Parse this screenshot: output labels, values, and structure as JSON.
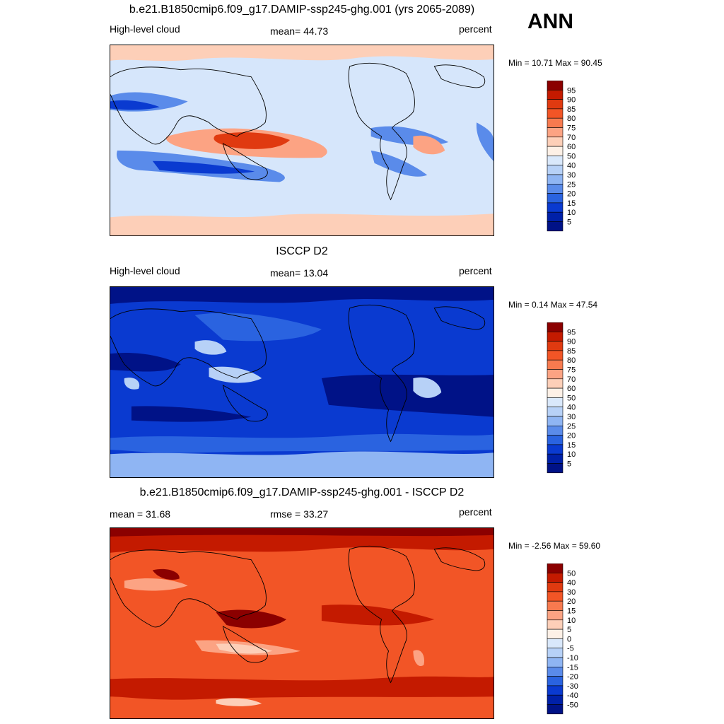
{
  "season": "ANN",
  "panels": [
    {
      "title": "b.e21.B1850cmip6.f09_g17.DAMIP-ssp245-ghg.001 (yrs 2065-2089)",
      "left": "High-level cloud",
      "center": "mean=  44.73",
      "right": "percent",
      "minmax": "Min =  10.71 Max =  90.45",
      "colorbar": {
        "labels": [
          "95",
          "90",
          "85",
          "80",
          "75",
          "70",
          "60",
          "50",
          "40",
          "30",
          "25",
          "20",
          "15",
          "10",
          "5"
        ],
        "colors": [
          "#8b0000",
          "#c41a00",
          "#e03a10",
          "#f25526",
          "#f77a4f",
          "#fca383",
          "#fdcfb8",
          "#fdf0e6",
          "#d9e8fb",
          "#b7d1f7",
          "#8fb5f3",
          "#5a8bea",
          "#2a63e0",
          "#0a3ad0",
          "#0020a8",
          "#001287"
        ]
      },
      "fields": {
        "background": "#d6e6fb",
        "regions": [
          {
            "kind": "warm-pool",
            "color": "#fca383"
          },
          {
            "kind": "warm-pool-core",
            "color": "#e03a10"
          },
          {
            "kind": "subtropics",
            "color": "#5a8bea"
          },
          {
            "kind": "subtropics-core",
            "color": "#0a3ad0"
          },
          {
            "kind": "polar",
            "color": "#fdcfb8"
          }
        ]
      }
    },
    {
      "title": "ISCCP D2",
      "left": "High-level cloud",
      "center": "mean=  13.04",
      "right": "percent",
      "minmax": "Min =   0.14 Max =  47.54",
      "colorbar": {
        "labels": [
          "95",
          "90",
          "85",
          "80",
          "75",
          "70",
          "60",
          "50",
          "40",
          "30",
          "25",
          "20",
          "15",
          "10",
          "5"
        ],
        "colors": [
          "#8b0000",
          "#c41a00",
          "#e03a10",
          "#f25526",
          "#f77a4f",
          "#fca383",
          "#fdcfb8",
          "#fdf0e6",
          "#d9e8fb",
          "#b7d1f7",
          "#8fb5f3",
          "#5a8bea",
          "#2a63e0",
          "#0a3ad0",
          "#0020a8",
          "#001287"
        ]
      },
      "fields": {
        "background": "#0a3ad0",
        "regions": [
          {
            "kind": "deep",
            "color": "#001287"
          },
          {
            "kind": "mid",
            "color": "#2a63e0"
          },
          {
            "kind": "convective",
            "color": "#b7d1f7"
          },
          {
            "kind": "polar",
            "color": "#8fb5f3"
          }
        ]
      }
    },
    {
      "title": "b.e21.B1850cmip6.f09_g17.DAMIP-ssp245-ghg.001 - ISCCP D2",
      "left": "mean =  31.68",
      "center": "rmse =  33.27",
      "right": "percent",
      "minmax": "Min =  -2.56 Max =  59.60",
      "colorbar": {
        "labels": [
          "50",
          "40",
          "30",
          "20",
          "15",
          "10",
          "5",
          "0",
          "-5",
          "-10",
          "-15",
          "-20",
          "-30",
          "-40",
          "-50"
        ],
        "colors": [
          "#8b0000",
          "#c41a00",
          "#e03a10",
          "#f25526",
          "#f77a4f",
          "#fca383",
          "#fdcfb8",
          "#fdf0e6",
          "#d9e8fb",
          "#b7d1f7",
          "#8fb5f3",
          "#5a8bea",
          "#2a63e0",
          "#0a3ad0",
          "#0020a8",
          "#001287"
        ]
      },
      "fields": {
        "background": "#f25526",
        "regions": [
          {
            "kind": "strong",
            "color": "#c41a00"
          },
          {
            "kind": "warm-pool",
            "color": "#8b0000"
          },
          {
            "kind": "weak",
            "color": "#fca383"
          },
          {
            "kind": "weakest",
            "color": "#fdcfb8"
          }
        ]
      }
    }
  ]
}
